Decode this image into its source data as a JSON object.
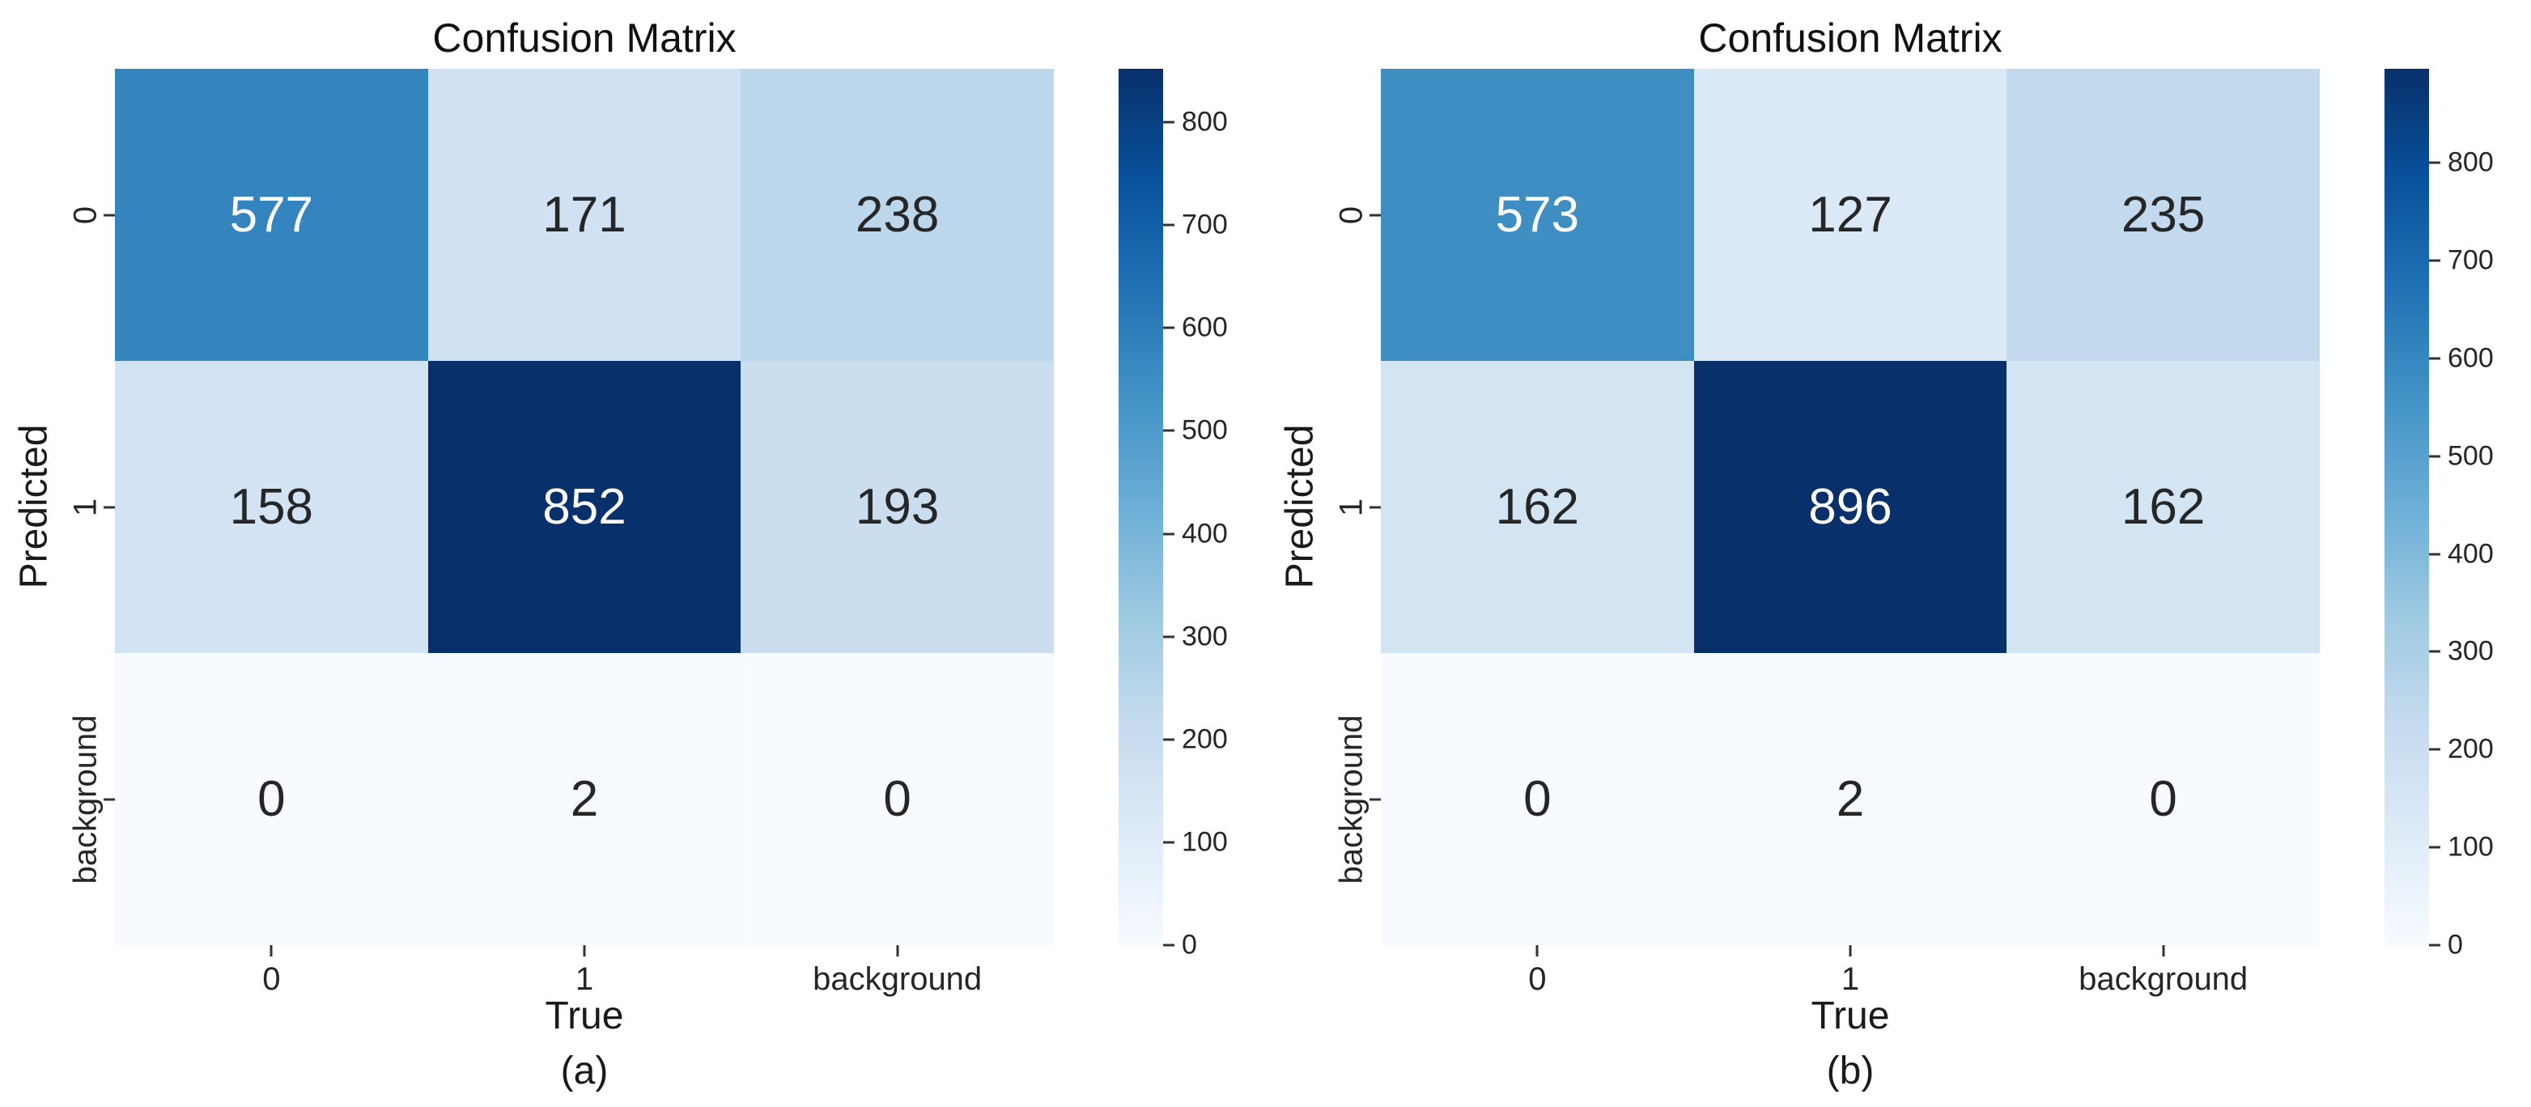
{
  "figure": {
    "background_color": "#ffffff",
    "colormap_name": "Blues",
    "colormap_stops": [
      "#f7fbff",
      "#deebf7",
      "#c6dbef",
      "#9ecae1",
      "#6baed6",
      "#4292c6",
      "#2171b5",
      "#08519c",
      "#08306b"
    ]
  },
  "chart_data": [
    {
      "type": "heatmap",
      "title": "Confusion Matrix",
      "caption": "(a)",
      "xlabel": "True",
      "ylabel": "Predicted",
      "x_ticklabels": [
        "0",
        "1",
        "background"
      ],
      "y_ticklabels": [
        "0",
        "1",
        "background"
      ],
      "matrix": [
        [
          577,
          171,
          238
        ],
        [
          158,
          852,
          193
        ],
        [
          0,
          2,
          0
        ]
      ],
      "vmin": 0,
      "vmax": 852,
      "colorbar_position": "right",
      "colorbar_ticks": [
        0,
        100,
        200,
        300,
        400,
        500,
        600,
        700,
        800
      ],
      "grid": false,
      "legend": "none",
      "cell_colors": [
        [
          "#3484bf",
          "#cfe1f2",
          "#bcd7ec"
        ],
        [
          "#d2e3f3",
          "#08306b",
          "#cadef0"
        ],
        [
          "#f7fbff",
          "#f6faff",
          "#f7fbff"
        ]
      ],
      "cell_text_colors": [
        [
          "#ffffff",
          "#262626",
          "#262626"
        ],
        [
          "#262626",
          "#ffffff",
          "#262626"
        ],
        [
          "#262626",
          "#262626",
          "#262626"
        ]
      ]
    },
    {
      "type": "heatmap",
      "title": "Confusion Matrix",
      "caption": "(b)",
      "xlabel": "True",
      "ylabel": "Predicted",
      "x_ticklabels": [
        "0",
        "1",
        "background"
      ],
      "y_ticklabels": [
        "0",
        "1",
        "background"
      ],
      "matrix": [
        [
          573,
          127,
          235
        ],
        [
          162,
          896,
          162
        ],
        [
          0,
          2,
          0
        ]
      ],
      "vmin": 0,
      "vmax": 896,
      "colorbar_position": "right",
      "colorbar_ticks": [
        0,
        100,
        200,
        300,
        400,
        500,
        600,
        700,
        800
      ],
      "grid": false,
      "legend": "none",
      "cell_colors": [
        [
          "#3e8ec4",
          "#dbe9f6",
          "#c2d9ee"
        ],
        [
          "#d3e4f3",
          "#08306b",
          "#d3e4f3"
        ],
        [
          "#f7fbff",
          "#f6faff",
          "#f7fbff"
        ]
      ],
      "cell_text_colors": [
        [
          "#ffffff",
          "#262626",
          "#262626"
        ],
        [
          "#262626",
          "#ffffff",
          "#262626"
        ],
        [
          "#262626",
          "#262626",
          "#262626"
        ]
      ]
    }
  ]
}
